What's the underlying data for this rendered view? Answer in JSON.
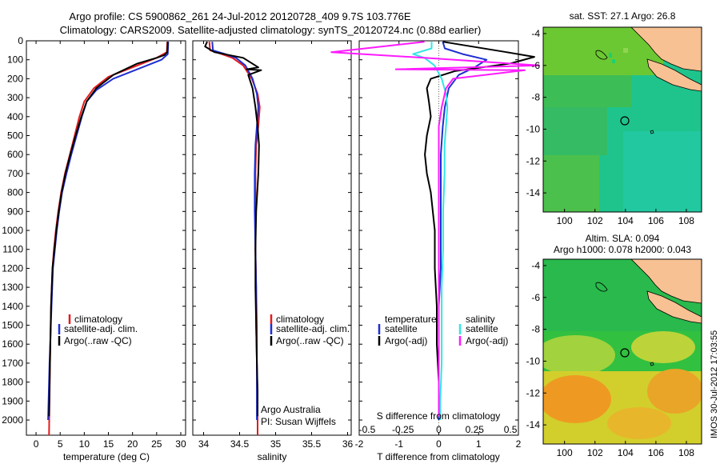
{
  "header": {
    "line1": "Argo profile: CS 5900862_261 24-Jul-2012 20120728_409 9.7S 103.776E",
    "line2": "Climatology: CARS2009. Satellite-adjusted climatology: synTS_20120724.nc (0.88d earlier)"
  },
  "colors": {
    "red": "#e41a1c",
    "blue": "#1f2fd0",
    "black": "#000000",
    "cyan": "#33e6e6",
    "magenta": "#ff1aff"
  },
  "chart_data": [
    {
      "type": "line",
      "id": "temperature",
      "xlabel": "temperature (deg C)",
      "ylabel": "",
      "xlim": [
        -2,
        31
      ],
      "ylim": [
        2080,
        0
      ],
      "xticks": [
        "0",
        "5",
        "10",
        "15",
        "20",
        "25",
        "30"
      ],
      "yticks": [
        "0",
        "100",
        "200",
        "300",
        "400",
        "500",
        "600",
        "700",
        "800",
        "900",
        "1000",
        "1100",
        "1200",
        "1300",
        "1400",
        "1500",
        "1600",
        "1700",
        "1800",
        "1900",
        "2000"
      ],
      "legend": [
        "climatology",
        "satellite-adj. clim.",
        "Argo(..raw -QC)"
      ],
      "series": [
        {
          "name": "climatology",
          "color": "red",
          "x": [
            27.2,
            27.1,
            25,
            20,
            15,
            12,
            10,
            9,
            8,
            7,
            6,
            5.2,
            4.6,
            4.1,
            3.7,
            3.4,
            3.1,
            2.9,
            2.7
          ],
          "y": [
            5,
            60,
            90,
            140,
            190,
            250,
            320,
            400,
            500,
            600,
            700,
            800,
            900,
            1000,
            1100,
            1200,
            1400,
            1700,
            2080
          ]
        },
        {
          "name": "satellite-adj. clim.",
          "color": "blue",
          "x": [
            27.4,
            27.3,
            26,
            21,
            16,
            12.5,
            10.5,
            9.5,
            8.4,
            7.3,
            6.3,
            5.4,
            4.8,
            4.3,
            3.9,
            3.5,
            3.2,
            2.8,
            2.5
          ],
          "y": [
            5,
            70,
            100,
            150,
            200,
            260,
            320,
            400,
            500,
            600,
            700,
            800,
            900,
            1000,
            1100,
            1200,
            1400,
            1700,
            2000
          ]
        },
        {
          "name": "Argo(..raw -QC)",
          "color": "black",
          "x": [
            27.3,
            27.2,
            26.6,
            25,
            21,
            16,
            12.5,
            10.5,
            9.4,
            8.2,
            7.1,
            6.1,
            5.3,
            4.7,
            4.2,
            3.8,
            3.4,
            3.1,
            2.9,
            2.7
          ],
          "y": [
            5,
            60,
            75,
            90,
            120,
            180,
            250,
            320,
            400,
            500,
            600,
            700,
            800,
            900,
            1000,
            1100,
            1200,
            1400,
            1700,
            1980
          ]
        }
      ]
    },
    {
      "type": "line",
      "id": "salinity",
      "xlabel": "salinity",
      "xlim": [
        33.85,
        36.05
      ],
      "ylim": [
        2080,
        0
      ],
      "xticks": [
        "34",
        "34.5",
        "35",
        "35.5",
        "36"
      ],
      "legend": [
        "climatology",
        "satellite-adj. clim.",
        "Argo(..raw -QC)"
      ],
      "annotation": [
        "Argo Australia",
        "PI: Susan Wijffels"
      ],
      "series": [
        {
          "name": "climatology",
          "color": "red",
          "x": [
            34.08,
            34.09,
            34.25,
            34.4,
            34.55,
            34.67,
            34.75,
            34.78,
            34.76,
            34.73,
            34.72,
            34.72,
            34.72,
            34.73,
            34.74,
            34.74,
            34.75,
            34.75
          ],
          "y": [
            5,
            50,
            70,
            90,
            130,
            200,
            280,
            350,
            450,
            550,
            700,
            900,
            1100,
            1300,
            1500,
            1700,
            1900,
            2080
          ]
        },
        {
          "name": "satellite-adj. clim.",
          "color": "blue",
          "x": [
            34.12,
            34.13,
            34.3,
            34.45,
            34.58,
            34.68,
            34.74,
            34.76,
            34.74,
            34.72,
            34.71,
            34.71,
            34.72,
            34.73,
            34.73,
            34.74,
            34.74,
            34.74
          ],
          "y": [
            5,
            50,
            70,
            90,
            130,
            200,
            280,
            350,
            450,
            550,
            700,
            900,
            1100,
            1300,
            1500,
            1700,
            1900,
            2000
          ]
        },
        {
          "name": "Argo(..raw -QC)",
          "color": "black",
          "x": [
            34.05,
            34.02,
            34.15,
            34.55,
            34.76,
            34.6,
            34.8,
            34.62,
            34.68,
            34.72,
            34.75,
            34.77,
            34.76,
            34.73,
            34.72,
            34.72,
            34.73,
            34.74,
            34.75,
            34.75
          ],
          "y": [
            5,
            30,
            60,
            90,
            140,
            150,
            155,
            180,
            250,
            350,
            450,
            550,
            700,
            900,
            1100,
            1300,
            1500,
            1700,
            1850,
            1980
          ]
        }
      ]
    },
    {
      "type": "line",
      "id": "difference",
      "xlabel": "T difference from climatology",
      "xlabel2": "S difference from climatology",
      "xlim": [
        -2.0,
        2.0
      ],
      "ylim": [
        2080,
        0
      ],
      "xticks": [
        "-2",
        "-1",
        "0",
        "1",
        "2"
      ],
      "xticks_s": [
        "-0.5",
        "-0.25",
        "0",
        "0.25",
        "0.5"
      ],
      "legend_t": {
        "title": "temperature",
        "items": [
          "satellite",
          "Argo(-adj)"
        ]
      },
      "legend_s": {
        "title": "salinity",
        "items": [
          "satellite",
          "Argo(-adj)"
        ]
      },
      "series": [
        {
          "name": "temperature satellite",
          "color": "blue",
          "x": [
            0.1,
            0.15,
            0.6,
            1.2,
            0.9,
            0.5,
            0.25,
            0.15,
            0.1,
            0.05,
            0.05,
            0.05,
            0.05,
            0.0,
            0.0,
            0.0,
            0.0
          ],
          "y": [
            5,
            40,
            70,
            100,
            140,
            180,
            250,
            350,
            450,
            600,
            800,
            1000,
            1200,
            1400,
            1600,
            1800,
            2000
          ]
        },
        {
          "name": "temperature Argo(-adj)",
          "color": "black",
          "x": [
            0.1,
            1.7,
            2.4,
            1.8,
            0.4,
            -0.2,
            -0.3,
            -0.25,
            -0.2,
            -0.3,
            -0.35,
            -0.3,
            -0.2,
            -0.15,
            -0.1,
            -0.1,
            -0.05,
            -0.05,
            0.0,
            0.0
          ],
          "y": [
            5,
            60,
            85,
            120,
            160,
            200,
            250,
            320,
            400,
            500,
            600,
            700,
            800,
            900,
            1000,
            1200,
            1400,
            1600,
            1800,
            1980
          ]
        },
        {
          "name": "salinity satellite",
          "color": "cyan",
          "x": [
            -0.05,
            -0.05,
            -0.18,
            -0.1,
            -0.03,
            0.02,
            0.05,
            0.06,
            0.05,
            0.04,
            0.04,
            0.03,
            0.03,
            0.02,
            0.02,
            0.02,
            0.01,
            0.01
          ],
          "y": [
            5,
            40,
            70,
            90,
            130,
            200,
            280,
            350,
            450,
            550,
            700,
            900,
            1100,
            1300,
            1500,
            1700,
            1900,
            2000
          ]
        },
        {
          "name": "salinity Argo(-adj)",
          "color": "magenta",
          "x": [
            -0.1,
            -0.75,
            -0.1,
            0.7,
            -0.3,
            0.6,
            0.1,
            0.05,
            0.02,
            0.0,
            0.0,
            0.0,
            0.0,
            0.0,
            0.0,
            0.0,
            0.0
          ],
          "y": [
            5,
            60,
            90,
            130,
            150,
            155,
            200,
            250,
            350,
            450,
            600,
            800,
            1000,
            1200,
            1500,
            1800,
            1980
          ]
        }
      ]
    }
  ],
  "maps": {
    "top": {
      "title": "sat. SST: 27.1 Argo: 26.8",
      "xticks": [
        "100",
        "102",
        "104",
        "106",
        "108"
      ],
      "yticks": [
        "-4",
        "-6",
        "-8",
        "-10",
        "-12",
        "-14"
      ]
    },
    "bottom": {
      "title1": "Altim. SLA: 0.094",
      "title2": "Argo h1000: 0.078 h2000: 0.043",
      "xticks": [
        "100",
        "102",
        "104",
        "106",
        "108"
      ],
      "yticks": [
        "-4",
        "-6",
        "-8",
        "-10",
        "-12",
        "-14"
      ]
    }
  },
  "side_label": "IMOS 30-Jul-2012 17:03:55"
}
